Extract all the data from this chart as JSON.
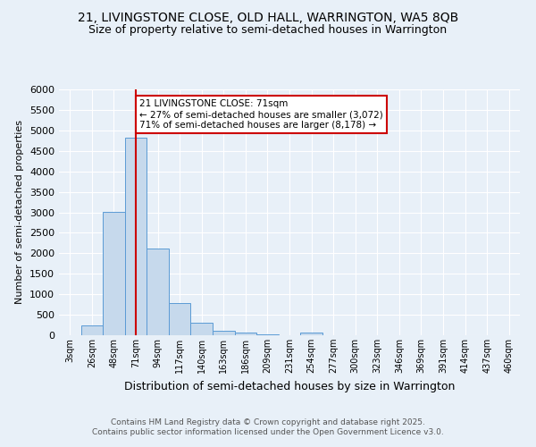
{
  "title": "21, LIVINGSTONE CLOSE, OLD HALL, WARRINGTON, WA5 8QB",
  "subtitle": "Size of property relative to semi-detached houses in Warrington",
  "xlabel": "Distribution of semi-detached houses by size in Warrington",
  "ylabel": "Number of semi-detached properties",
  "bin_labels": [
    "3sqm",
    "26sqm",
    "48sqm",
    "71sqm",
    "94sqm",
    "117sqm",
    "140sqm",
    "163sqm",
    "186sqm",
    "209sqm",
    "231sqm",
    "254sqm",
    "277sqm",
    "300sqm",
    "323sqm",
    "346sqm",
    "369sqm",
    "391sqm",
    "414sqm",
    "437sqm",
    "460sqm"
  ],
  "bar_values": [
    0,
    240,
    3020,
    4820,
    2120,
    790,
    300,
    120,
    65,
    30,
    0,
    55,
    0,
    0,
    0,
    0,
    0,
    0,
    0,
    0,
    0
  ],
  "bar_color": "#c6d9ec",
  "bar_edge_color": "#5b9bd5",
  "red_line_bin": 3,
  "annotation_title": "21 LIVINGSTONE CLOSE: 71sqm",
  "annotation_line1": "← 27% of semi-detached houses are smaller (3,072)",
  "annotation_line2": "71% of semi-detached houses are larger (8,178) →",
  "ylim": [
    0,
    6000
  ],
  "yticks": [
    0,
    500,
    1000,
    1500,
    2000,
    2500,
    3000,
    3500,
    4000,
    4500,
    5000,
    5500,
    6000
  ],
  "footer_line1": "Contains HM Land Registry data © Crown copyright and database right 2025.",
  "footer_line2": "Contains public sector information licensed under the Open Government Licence v3.0.",
  "background_color": "#e8f0f8",
  "title_fontsize": 10,
  "subtitle_fontsize": 9,
  "annotation_box_color": "#ffffff",
  "annotation_border_color": "#cc0000",
  "red_line_color": "#cc0000"
}
